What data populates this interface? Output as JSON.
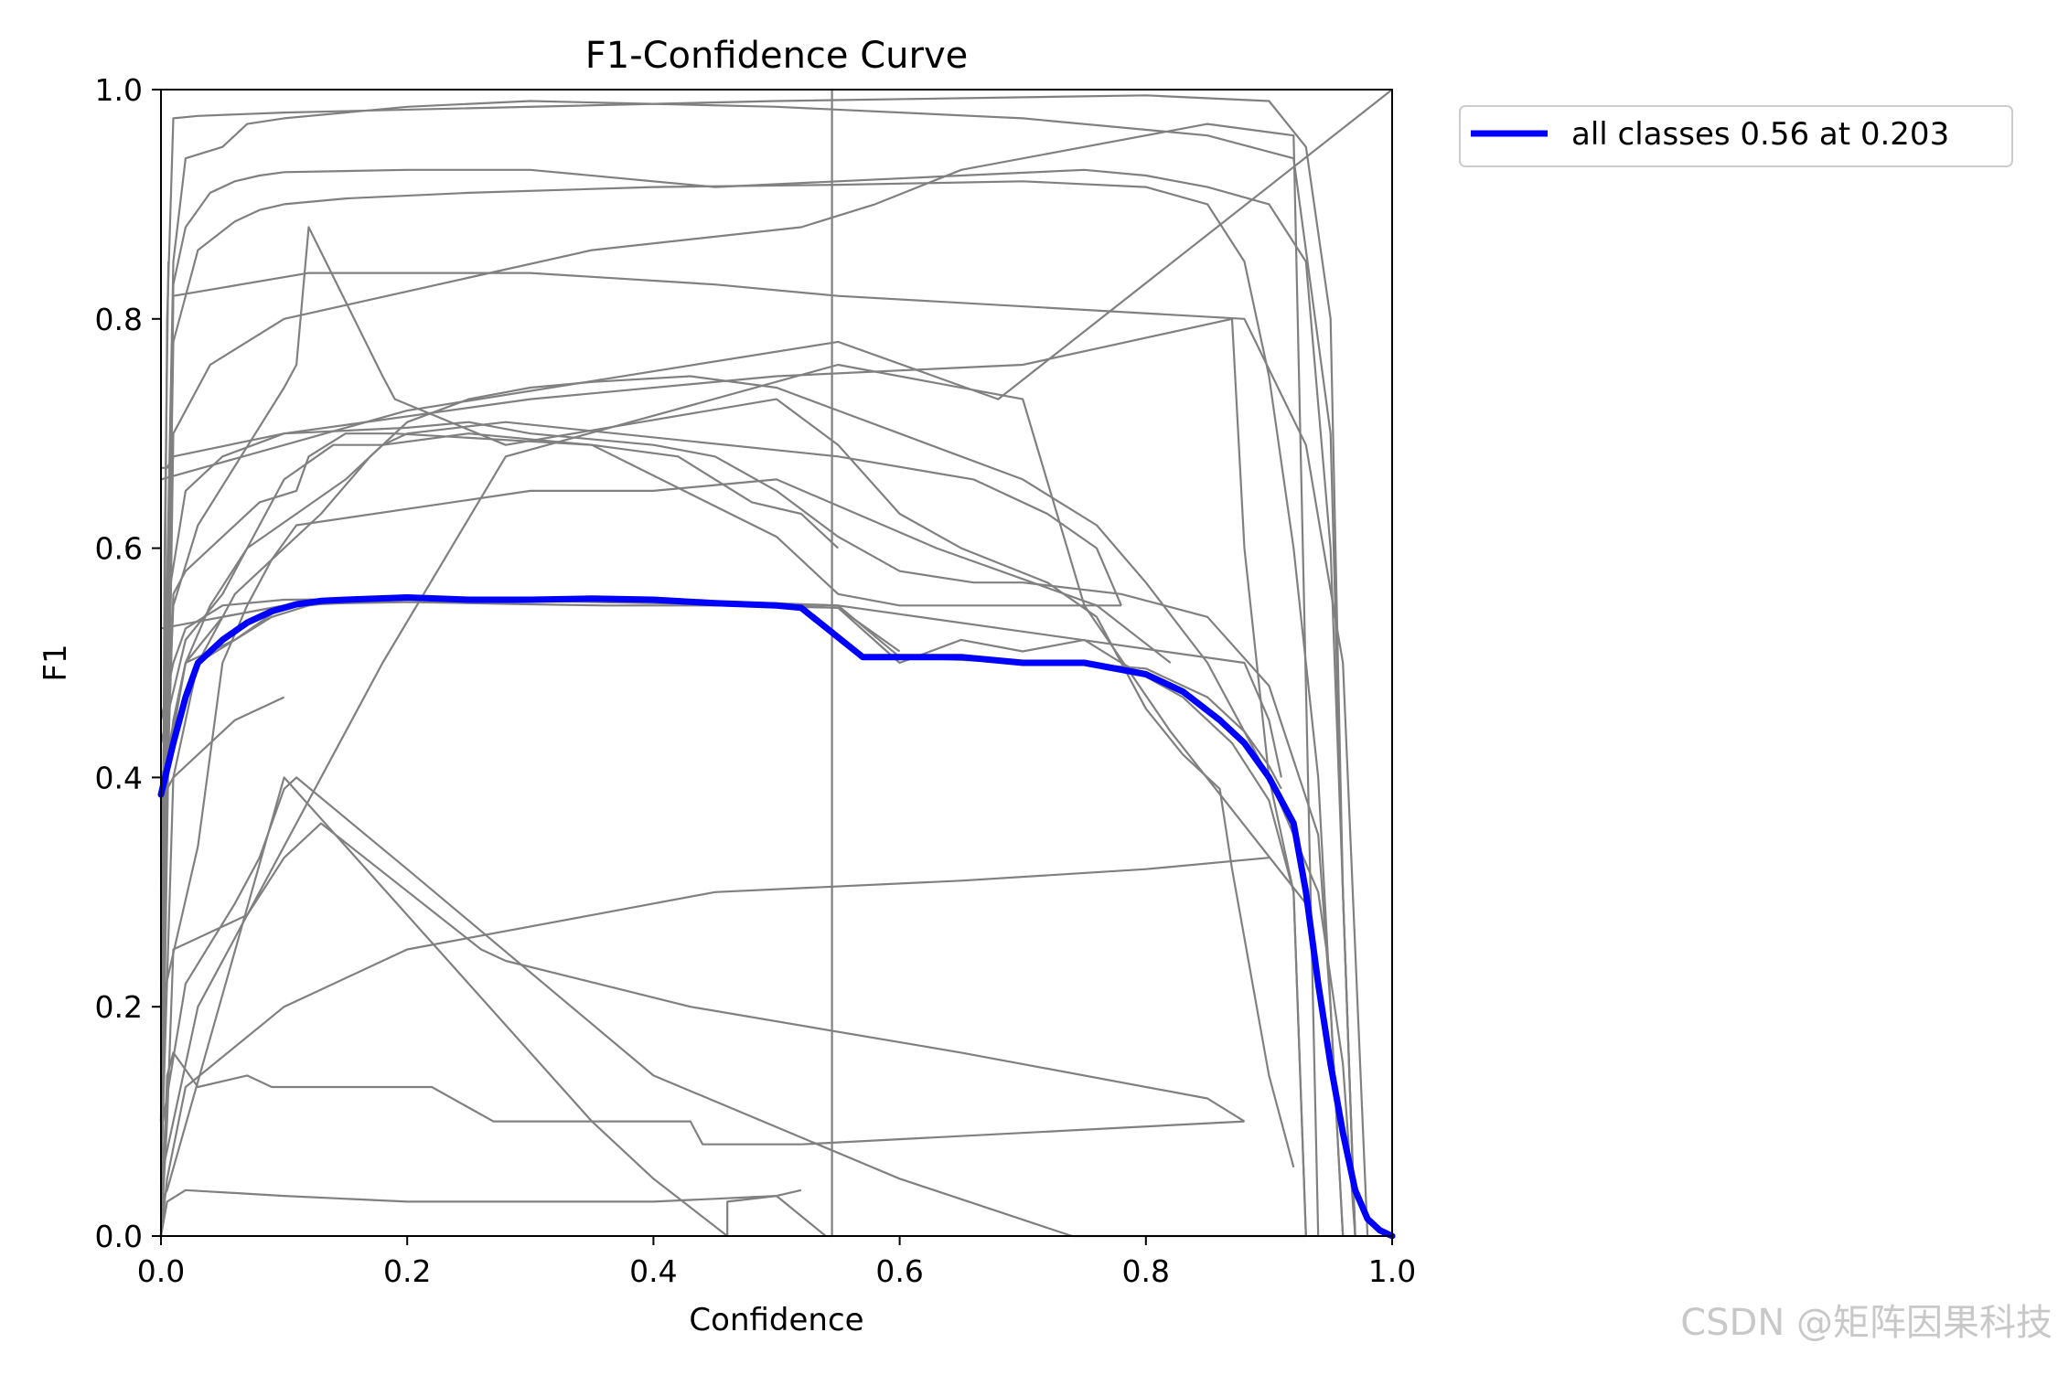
{
  "chart_data": {
    "type": "line",
    "title": "F1-Confidence Curve",
    "xlabel": "Confidence",
    "ylabel": "F1",
    "xlim": [
      0,
      1
    ],
    "ylim": [
      0,
      1
    ],
    "xticks": [
      "0.0",
      "0.2",
      "0.4",
      "0.6",
      "0.8",
      "1.0"
    ],
    "yticks": [
      "0.0",
      "0.2",
      "0.4",
      "0.6",
      "0.8",
      "1.0"
    ],
    "legend_position": "outside-top-right",
    "grid": false,
    "colors": {
      "all_classes": "#0000ff",
      "per_class": "#808080"
    },
    "series": [
      {
        "name": "all classes 0.56 at 0.203",
        "x": [
          0.0,
          0.01,
          0.02,
          0.03,
          0.05,
          0.07,
          0.09,
          0.11,
          0.13,
          0.15,
          0.2,
          0.25,
          0.3,
          0.35,
          0.4,
          0.45,
          0.5,
          0.52,
          0.57,
          0.6,
          0.65,
          0.7,
          0.75,
          0.8,
          0.83,
          0.86,
          0.88,
          0.9,
          0.91,
          0.92,
          0.93,
          0.94,
          0.95,
          0.96,
          0.97,
          0.98,
          0.99,
          1.0
        ],
        "y": [
          0.385,
          0.43,
          0.47,
          0.5,
          0.52,
          0.535,
          0.545,
          0.551,
          0.554,
          0.555,
          0.557,
          0.555,
          0.555,
          0.556,
          0.555,
          0.552,
          0.55,
          0.548,
          0.505,
          0.505,
          0.505,
          0.5,
          0.5,
          0.49,
          0.475,
          0.45,
          0.43,
          0.4,
          0.38,
          0.36,
          0.3,
          0.22,
          0.15,
          0.09,
          0.04,
          0.015,
          0.005,
          0.0
        ]
      },
      {
        "x": [
          0,
          0.005,
          0.01,
          0.03,
          0.1,
          0.5,
          0.8,
          0.9,
          0.93,
          0.95,
          0.96,
          0.97
        ],
        "y": [
          0.1,
          0.8,
          0.975,
          0.977,
          0.98,
          0.99,
          0.995,
          0.99,
          0.95,
          0.8,
          0.3,
          0.0
        ]
      },
      {
        "x": [
          0,
          0.01,
          0.02,
          0.05,
          0.07,
          0.1,
          0.2,
          0.3,
          0.5,
          0.7,
          0.85,
          0.92,
          0.95,
          0.96,
          0.97
        ],
        "y": [
          0.3,
          0.85,
          0.94,
          0.95,
          0.97,
          0.975,
          0.985,
          0.99,
          0.985,
          0.975,
          0.96,
          0.94,
          0.7,
          0.3,
          0.0
        ]
      },
      {
        "x": [
          0,
          0.01,
          0.02,
          0.04,
          0.06,
          0.08,
          0.1,
          0.2,
          0.3,
          0.45,
          0.55,
          0.65,
          0.75,
          0.8,
          0.85,
          0.9,
          0.93,
          0.95,
          0.96,
          0.97
        ],
        "y": [
          0.2,
          0.83,
          0.88,
          0.91,
          0.92,
          0.925,
          0.928,
          0.93,
          0.93,
          0.915,
          0.92,
          0.925,
          0.93,
          0.925,
          0.915,
          0.9,
          0.85,
          0.6,
          0.3,
          0.0
        ]
      },
      {
        "x": [
          0,
          0.01,
          0.03,
          0.06,
          0.08,
          0.1,
          0.15,
          0.25,
          0.4,
          0.55,
          0.7,
          0.8,
          0.85,
          0.88,
          0.9,
          0.92,
          0.94,
          0.95,
          0.96
        ],
        "y": [
          0.15,
          0.78,
          0.86,
          0.885,
          0.895,
          0.9,
          0.905,
          0.91,
          0.915,
          0.917,
          0.92,
          0.915,
          0.9,
          0.85,
          0.75,
          0.6,
          0.4,
          0.2,
          0.0
        ]
      },
      {
        "x": [
          0,
          0.005,
          0.02,
          0.05,
          0.1,
          0.2,
          0.25,
          0.3,
          0.4,
          0.45,
          0.5,
          0.55,
          0.6,
          0.66,
          0.7,
          0.78,
          0.85,
          0.9,
          0.94,
          0.95,
          0.96
        ],
        "y": [
          0.1,
          0.55,
          0.65,
          0.68,
          0.7,
          0.705,
          0.71,
          0.7,
          0.69,
          0.68,
          0.65,
          0.61,
          0.58,
          0.57,
          0.57,
          0.56,
          0.54,
          0.48,
          0.35,
          0.2,
          0.0
        ]
      },
      {
        "x": [
          0,
          0.01,
          0.03,
          0.06,
          0.1,
          0.13,
          0.17,
          0.2,
          0.25,
          0.3,
          0.35,
          0.43,
          0.5,
          0.55,
          0.6,
          0.65,
          0.7,
          0.76,
          0.8,
          0.85,
          0.9,
          0.94,
          0.96,
          0.97
        ],
        "y": [
          0.05,
          0.4,
          0.5,
          0.56,
          0.6,
          0.63,
          0.68,
          0.71,
          0.73,
          0.74,
          0.745,
          0.75,
          0.74,
          0.72,
          0.7,
          0.68,
          0.66,
          0.62,
          0.57,
          0.5,
          0.4,
          0.3,
          0.15,
          0.0
        ]
      },
      {
        "x": [
          0,
          0.005,
          0.02,
          0.05,
          0.1,
          0.15,
          0.2,
          0.3,
          0.36,
          0.45,
          0.5,
          0.55,
          0.6,
          0.65,
          0.7,
          0.75,
          0.78,
          0.83,
          0.87,
          0.9,
          0.92,
          0.93
        ],
        "y": [
          0.1,
          0.42,
          0.5,
          0.54,
          0.55,
          0.552,
          0.553,
          0.551,
          0.55,
          0.55,
          0.549,
          0.548,
          0.5,
          0.52,
          0.51,
          0.52,
          0.5,
          0.47,
          0.43,
          0.38,
          0.3,
          0.0
        ]
      },
      {
        "x": [
          0.0,
          0.2,
          0.55,
          0.68,
          1.0
        ],
        "y": [
          0.66,
          0.72,
          0.78,
          0.73,
          1.0
        ]
      },
      {
        "x": [
          0.0,
          0.02,
          0.04,
          0.07,
          0.11,
          0.15,
          0.18,
          0.25,
          0.35,
          0.5,
          0.55,
          0.6,
          0.7,
          0.78
        ],
        "y": [
          0.38,
          0.5,
          0.55,
          0.6,
          0.63,
          0.66,
          0.69,
          0.7,
          0.69,
          0.61,
          0.56,
          0.55,
          0.55,
          0.55
        ]
      },
      {
        "x": [
          0.0,
          0.01,
          0.03,
          0.1,
          0.11,
          0.12,
          0.18,
          0.19,
          0.28,
          0.5,
          0.55,
          0.6,
          0.65,
          0.72,
          0.76,
          0.8,
          0.83,
          0.86,
          0.87,
          0.88,
          0.89,
          0.9,
          0.92
        ],
        "y": [
          0.31,
          0.55,
          0.62,
          0.74,
          0.76,
          0.88,
          0.75,
          0.73,
          0.69,
          0.73,
          0.69,
          0.63,
          0.6,
          0.57,
          0.54,
          0.46,
          0.42,
          0.39,
          0.32,
          0.26,
          0.2,
          0.14,
          0.06
        ]
      },
      {
        "x": [
          0.0,
          0.02,
          0.05,
          0.08,
          0.1,
          0.14,
          0.18,
          0.2,
          0.28,
          0.55,
          0.66,
          0.72,
          0.76,
          0.78
        ],
        "y": [
          0.43,
          0.52,
          0.56,
          0.62,
          0.66,
          0.69,
          0.69,
          0.7,
          0.71,
          0.68,
          0.66,
          0.63,
          0.6,
          0.55
        ]
      },
      {
        "x": [
          0.0,
          0.03,
          0.05,
          0.07,
          0.09,
          0.11,
          0.3,
          0.4,
          0.5,
          0.63,
          0.76,
          0.82
        ],
        "y": [
          0.2,
          0.34,
          0.5,
          0.55,
          0.59,
          0.62,
          0.65,
          0.65,
          0.66,
          0.6,
          0.55,
          0.5
        ]
      },
      {
        "x": [
          0.0,
          0.01,
          0.02,
          0.08,
          0.11,
          0.12,
          0.15,
          0.19,
          0.35,
          0.42,
          0.45,
          0.48,
          0.52,
          0.55
        ],
        "y": [
          0.22,
          0.56,
          0.58,
          0.64,
          0.65,
          0.68,
          0.7,
          0.7,
          0.69,
          0.68,
          0.66,
          0.64,
          0.63,
          0.6
        ]
      },
      {
        "x": [
          0.0,
          0.01,
          0.02,
          0.05,
          0.1,
          0.2,
          0.28,
          0.35,
          0.45,
          0.5,
          0.55,
          0.6
        ],
        "y": [
          0.45,
          0.5,
          0.53,
          0.55,
          0.555,
          0.556,
          0.555,
          0.554,
          0.553,
          0.552,
          0.55,
          0.505
        ]
      },
      {
        "x": [
          0.0,
          0.01,
          0.02,
          0.06,
          0.09,
          0.12,
          0.18,
          0.28,
          0.35,
          0.45,
          0.5,
          0.52,
          0.57,
          0.6,
          0.7,
          0.74,
          0.8,
          0.85,
          0.88,
          0.9,
          0.91
        ],
        "y": [
          0.35,
          0.45,
          0.5,
          0.52,
          0.54,
          0.55,
          0.557,
          0.556,
          0.555,
          0.552,
          0.549,
          0.548,
          0.505,
          0.505,
          0.5,
          0.5,
          0.495,
          0.47,
          0.44,
          0.41,
          0.39
        ]
      },
      {
        "x": [
          0.0,
          0.1,
          0.15,
          0.17,
          0.28,
          0.35,
          0.5,
          0.55,
          0.6
        ],
        "y": [
          0.53,
          0.55,
          0.555,
          0.557,
          0.555,
          0.553,
          0.55,
          0.548,
          0.51
        ]
      },
      {
        "x": [
          0.0,
          0.01,
          0.03,
          0.06,
          0.1
        ],
        "y": [
          0.38,
          0.4,
          0.42,
          0.45,
          0.47
        ]
      },
      {
        "x": [
          0.0,
          0.03,
          0.18,
          0.28,
          0.55,
          0.7,
          0.75,
          0.82,
          0.93
        ],
        "y": [
          0.05,
          0.2,
          0.5,
          0.68,
          0.76,
          0.73,
          0.55,
          0.44,
          0.29
        ]
      },
      {
        "x": [
          0.0,
          0.005,
          0.02,
          0.1,
          0.2,
          0.35,
          0.45,
          0.65,
          0.8,
          0.9
        ],
        "y": [
          0.0,
          0.05,
          0.13,
          0.2,
          0.25,
          0.28,
          0.3,
          0.31,
          0.32,
          0.33
        ]
      },
      {
        "x": [
          0.0,
          0.005,
          0.1,
          0.15,
          0.2,
          0.25,
          0.3,
          0.35,
          0.4,
          0.46,
          0.46,
          0.5,
          0.52
        ],
        "y": [
          0.03,
          0.04,
          0.4,
          0.34,
          0.28,
          0.22,
          0.16,
          0.1,
          0.05,
          0.0,
          0.03,
          0.035,
          0.04
        ]
      },
      {
        "x": [
          0.0,
          0.005,
          0.01,
          0.03,
          0.07,
          0.1,
          0.13,
          0.26,
          0.28,
          0.43,
          0.65,
          0.85,
          0.88
        ],
        "y": [
          0.0,
          0.1,
          0.25,
          0.26,
          0.28,
          0.33,
          0.36,
          0.25,
          0.24,
          0.2,
          0.16,
          0.12,
          0.1
        ]
      },
      {
        "x": [
          0.0,
          0.02,
          0.06,
          0.08,
          0.1,
          0.11,
          0.2,
          0.4,
          0.6,
          0.74,
          0.85,
          0.93
        ],
        "y": [
          0.09,
          0.22,
          0.29,
          0.33,
          0.39,
          0.4,
          0.32,
          0.14,
          0.05,
          0.0,
          0.0,
          0.0
        ]
      },
      {
        "x": [
          0.0,
          0.005,
          0.01,
          0.03,
          0.07,
          0.09,
          0.2,
          0.22,
          0.27,
          0.43,
          0.44,
          0.52,
          0.88
        ],
        "y": [
          0.0,
          0.14,
          0.16,
          0.13,
          0.14,
          0.13,
          0.13,
          0.13,
          0.1,
          0.1,
          0.08,
          0.08,
          0.1
        ]
      },
      {
        "x": [
          0.0,
          0.005,
          0.02,
          0.1,
          0.2,
          0.4,
          0.5,
          0.54
        ],
        "y": [
          0.0,
          0.03,
          0.04,
          0.035,
          0.03,
          0.03,
          0.035,
          0.0
        ]
      },
      {
        "x": [
          0.0,
          0.03,
          0.06,
          0.1,
          0.2,
          0.35,
          0.55,
          0.88,
          0.9,
          0.91
        ],
        "y": [
          0.4,
          0.5,
          0.52,
          0.55,
          0.555,
          0.555,
          0.55,
          0.5,
          0.45,
          0.4
        ]
      },
      {
        "x": [
          0.544,
          0.545,
          0.545
        ],
        "y": [
          0.0,
          0.0,
          1.0
        ]
      },
      {
        "x": [
          0.0,
          0.003,
          0.006
        ],
        "y": [
          0.0,
          0.6,
          0.85
        ]
      },
      {
        "x": [
          0.0,
          0.005,
          0.01,
          0.1,
          0.3,
          0.5,
          0.7,
          0.87,
          0.88,
          0.9,
          0.92,
          0.93
        ],
        "y": [
          0.67,
          0.67,
          0.68,
          0.7,
          0.73,
          0.75,
          0.76,
          0.8,
          0.6,
          0.4,
          0.3,
          0.0
        ]
      },
      {
        "x": [
          0.0,
          0.01,
          0.12,
          0.3,
          0.45,
          0.55,
          0.88,
          0.93,
          0.96,
          0.98
        ],
        "y": [
          0.0,
          0.82,
          0.84,
          0.84,
          0.83,
          0.82,
          0.8,
          0.69,
          0.5,
          0.0
        ]
      },
      {
        "x": [
          0.0,
          0.01,
          0.04,
          0.1,
          0.35,
          0.52,
          0.58,
          0.65,
          0.75,
          0.85,
          0.92,
          0.94
        ],
        "y": [
          0.0,
          0.7,
          0.76,
          0.8,
          0.86,
          0.88,
          0.9,
          0.93,
          0.95,
          0.97,
          0.96,
          0.0
        ]
      }
    ]
  },
  "watermark": "CSDN @矩阵因果科技"
}
